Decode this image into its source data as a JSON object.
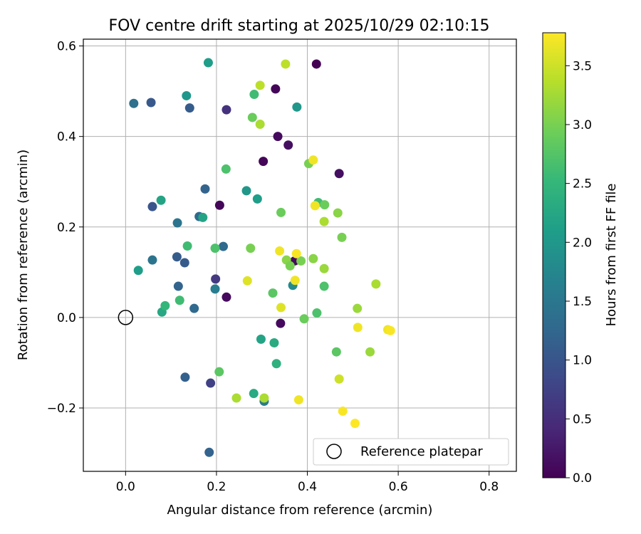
{
  "chart_data": {
    "type": "scatter",
    "title": "FOV centre drift starting at 2025/10/29 02:10:15",
    "xlabel": "Angular distance from reference (arcmin)",
    "ylabel": "Rotation from reference (arcmin)",
    "xlim": [
      -0.093,
      0.86
    ],
    "ylim": [
      -0.34,
      0.615
    ],
    "xticks": [
      0.0,
      0.2,
      0.4,
      0.6,
      0.8
    ],
    "xtick_labels": [
      "0.0",
      "0.2",
      "0.4",
      "0.6",
      "0.8"
    ],
    "yticks": [
      -0.2,
      0.0,
      0.2,
      0.4,
      0.6
    ],
    "ytick_labels": [
      "−0.2",
      "0.0",
      "0.2",
      "0.4",
      "0.6"
    ],
    "grid": true,
    "colorbar": {
      "label": "Hours from first FF file",
      "range": [
        0.0,
        3.78
      ],
      "ticks": [
        0.0,
        0.5,
        1.0,
        1.5,
        2.0,
        2.5,
        3.0,
        3.5
      ],
      "tick_labels": [
        "0.0",
        "0.5",
        "1.0",
        "1.5",
        "2.0",
        "2.5",
        "3.0",
        "3.5"
      ],
      "colormap": [
        "#440154",
        "#482878",
        "#3e4989",
        "#31688e",
        "#26828e",
        "#1f9e89",
        "#35b779",
        "#6ece58",
        "#b5de2b",
        "#fde725"
      ]
    },
    "legend": {
      "location": "lower-right",
      "entries": [
        "Reference platepar"
      ]
    },
    "reference_point": {
      "x": 0.0,
      "y": 0.0,
      "label": "Reference platepar"
    },
    "points": [
      {
        "x": 0.42,
        "y": 0.56,
        "t": 0.0
      },
      {
        "x": 0.33,
        "y": 0.505,
        "t": 0.05
      },
      {
        "x": 0.335,
        "y": 0.4,
        "t": 0.1
      },
      {
        "x": 0.358,
        "y": 0.381,
        "t": 0.15
      },
      {
        "x": 0.303,
        "y": 0.345,
        "t": 0.05
      },
      {
        "x": 0.47,
        "y": 0.318,
        "t": 0.15
      },
      {
        "x": 0.207,
        "y": 0.248,
        "t": 0.05
      },
      {
        "x": 0.222,
        "y": 0.045,
        "t": 0.1
      },
      {
        "x": 0.341,
        "y": -0.013,
        "t": 0.1
      },
      {
        "x": 0.372,
        "y": 0.125,
        "t": 0.1
      },
      {
        "x": 0.222,
        "y": 0.459,
        "t": 0.55
      },
      {
        "x": 0.198,
        "y": 0.085,
        "t": 0.65
      },
      {
        "x": 0.187,
        "y": -0.145,
        "t": 0.75
      },
      {
        "x": 0.056,
        "y": 0.475,
        "t": 1.05
      },
      {
        "x": 0.141,
        "y": 0.463,
        "t": 1.1
      },
      {
        "x": 0.175,
        "y": 0.284,
        "t": 1.2
      },
      {
        "x": 0.059,
        "y": 0.245,
        "t": 1.0
      },
      {
        "x": 0.162,
        "y": 0.223,
        "t": 1.3
      },
      {
        "x": 0.114,
        "y": 0.209,
        "t": 1.45
      },
      {
        "x": 0.113,
        "y": 0.134,
        "t": 1.1
      },
      {
        "x": 0.13,
        "y": 0.121,
        "t": 1.1
      },
      {
        "x": 0.215,
        "y": 0.157,
        "t": 1.3
      },
      {
        "x": 0.116,
        "y": 0.069,
        "t": 1.2
      },
      {
        "x": 0.151,
        "y": 0.02,
        "t": 1.3
      },
      {
        "x": 0.131,
        "y": -0.132,
        "t": 1.15
      },
      {
        "x": 0.184,
        "y": -0.298,
        "t": 1.2
      },
      {
        "x": 0.018,
        "y": 0.473,
        "t": 1.4
      },
      {
        "x": 0.059,
        "y": 0.127,
        "t": 1.45
      },
      {
        "x": 0.197,
        "y": 0.063,
        "t": 1.6
      },
      {
        "x": 0.305,
        "y": -0.185,
        "t": 1.55
      },
      {
        "x": 0.368,
        "y": 0.071,
        "t": 1.8
      },
      {
        "x": 0.182,
        "y": 0.563,
        "t": 2.1
      },
      {
        "x": 0.134,
        "y": 0.49,
        "t": 2.0
      },
      {
        "x": 0.377,
        "y": 0.465,
        "t": 2.0
      },
      {
        "x": 0.078,
        "y": 0.259,
        "t": 2.2
      },
      {
        "x": 0.266,
        "y": 0.28,
        "t": 2.0
      },
      {
        "x": 0.29,
        "y": 0.262,
        "t": 2.1
      },
      {
        "x": 0.17,
        "y": 0.221,
        "t": 2.2
      },
      {
        "x": 0.028,
        "y": 0.104,
        "t": 2.1
      },
      {
        "x": 0.08,
        "y": 0.012,
        "t": 2.25
      },
      {
        "x": 0.298,
        "y": -0.048,
        "t": 2.2
      },
      {
        "x": 0.327,
        "y": -0.056,
        "t": 2.3
      },
      {
        "x": 0.332,
        "y": -0.102,
        "t": 2.4
      },
      {
        "x": 0.282,
        "y": -0.168,
        "t": 2.3
      },
      {
        "x": 0.283,
        "y": 0.493,
        "t": 2.6
      },
      {
        "x": 0.221,
        "y": 0.328,
        "t": 2.7
      },
      {
        "x": 0.424,
        "y": 0.254,
        "t": 2.6
      },
      {
        "x": 0.136,
        "y": 0.158,
        "t": 2.6
      },
      {
        "x": 0.197,
        "y": 0.153,
        "t": 2.7
      },
      {
        "x": 0.087,
        "y": 0.026,
        "t": 2.5
      },
      {
        "x": 0.119,
        "y": 0.038,
        "t": 2.6
      },
      {
        "x": 0.324,
        "y": 0.054,
        "t": 2.8
      },
      {
        "x": 0.437,
        "y": 0.069,
        "t": 2.7
      },
      {
        "x": 0.421,
        "y": 0.01,
        "t": 2.7
      },
      {
        "x": 0.393,
        "y": -0.003,
        "t": 2.9
      },
      {
        "x": 0.206,
        "y": -0.12,
        "t": 2.8
      },
      {
        "x": 0.464,
        "y": -0.076,
        "t": 2.8
      },
      {
        "x": 0.279,
        "y": 0.442,
        "t": 2.9
      },
      {
        "x": 0.342,
        "y": 0.232,
        "t": 2.9
      },
      {
        "x": 0.403,
        "y": 0.34,
        "t": 3.0
      },
      {
        "x": 0.438,
        "y": 0.249,
        "t": 2.9
      },
      {
        "x": 0.467,
        "y": 0.231,
        "t": 3.1
      },
      {
        "x": 0.476,
        "y": 0.177,
        "t": 3.0
      },
      {
        "x": 0.275,
        "y": 0.153,
        "t": 3.0
      },
      {
        "x": 0.354,
        "y": 0.127,
        "t": 3.1
      },
      {
        "x": 0.362,
        "y": 0.114,
        "t": 3.0
      },
      {
        "x": 0.386,
        "y": 0.125,
        "t": 3.0
      },
      {
        "x": 0.413,
        "y": 0.13,
        "t": 3.1
      },
      {
        "x": 0.437,
        "y": 0.108,
        "t": 3.2
      },
      {
        "x": 0.538,
        "y": -0.076,
        "t": 3.2
      },
      {
        "x": 0.51,
        "y": 0.02,
        "t": 3.2
      },
      {
        "x": 0.296,
        "y": 0.427,
        "t": 3.3
      },
      {
        "x": 0.437,
        "y": 0.212,
        "t": 3.3
      },
      {
        "x": 0.551,
        "y": 0.074,
        "t": 3.3
      },
      {
        "x": 0.244,
        "y": -0.178,
        "t": 3.3
      },
      {
        "x": 0.305,
        "y": -0.178,
        "t": 3.3
      },
      {
        "x": 0.296,
        "y": 0.513,
        "t": 3.4
      },
      {
        "x": 0.352,
        "y": 0.56,
        "t": 3.4
      },
      {
        "x": 0.47,
        "y": -0.136,
        "t": 3.5
      },
      {
        "x": 0.413,
        "y": 0.348,
        "t": 3.7
      },
      {
        "x": 0.417,
        "y": 0.247,
        "t": 3.7
      },
      {
        "x": 0.339,
        "y": 0.147,
        "t": 3.7
      },
      {
        "x": 0.376,
        "y": 0.141,
        "t": 3.75
      },
      {
        "x": 0.268,
        "y": 0.081,
        "t": 3.6
      },
      {
        "x": 0.373,
        "y": 0.082,
        "t": 3.7
      },
      {
        "x": 0.342,
        "y": 0.022,
        "t": 3.6
      },
      {
        "x": 0.511,
        "y": -0.022,
        "t": 3.7
      },
      {
        "x": 0.577,
        "y": -0.027,
        "t": 3.7
      },
      {
        "x": 0.583,
        "y": -0.029,
        "t": 3.75
      },
      {
        "x": 0.381,
        "y": -0.182,
        "t": 3.7
      },
      {
        "x": 0.478,
        "y": -0.207,
        "t": 3.75
      },
      {
        "x": 0.505,
        "y": -0.234,
        "t": 3.78
      }
    ]
  }
}
